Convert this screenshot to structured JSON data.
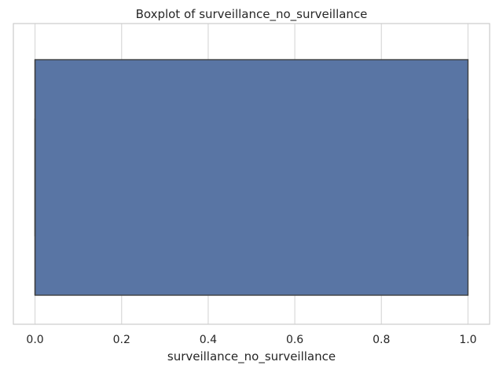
{
  "chart_data": {
    "type": "box",
    "title": "Boxplot of surveillance_no_surveillance",
    "xlabel": "surveillance_no_surveillance",
    "ylabel": "",
    "xlim": [
      -0.05,
      1.05
    ],
    "x_ticks": [
      0.0,
      0.2,
      0.4,
      0.6,
      0.8,
      1.0
    ],
    "x_tick_labels": [
      "0.0",
      "0.2",
      "0.4",
      "0.6",
      "0.8",
      "1.0"
    ],
    "grid": true,
    "orientation": "horizontal",
    "series": [
      {
        "min": 0.0,
        "q1": 0.0,
        "median": 0.0,
        "q3": 1.0,
        "max": 1.0,
        "color": "#5975a4",
        "edge_color": "#3f3f3f"
      }
    ]
  },
  "colors": {
    "grid": "#d9d9d9",
    "frame": "#cccccc",
    "text": "#262626"
  }
}
